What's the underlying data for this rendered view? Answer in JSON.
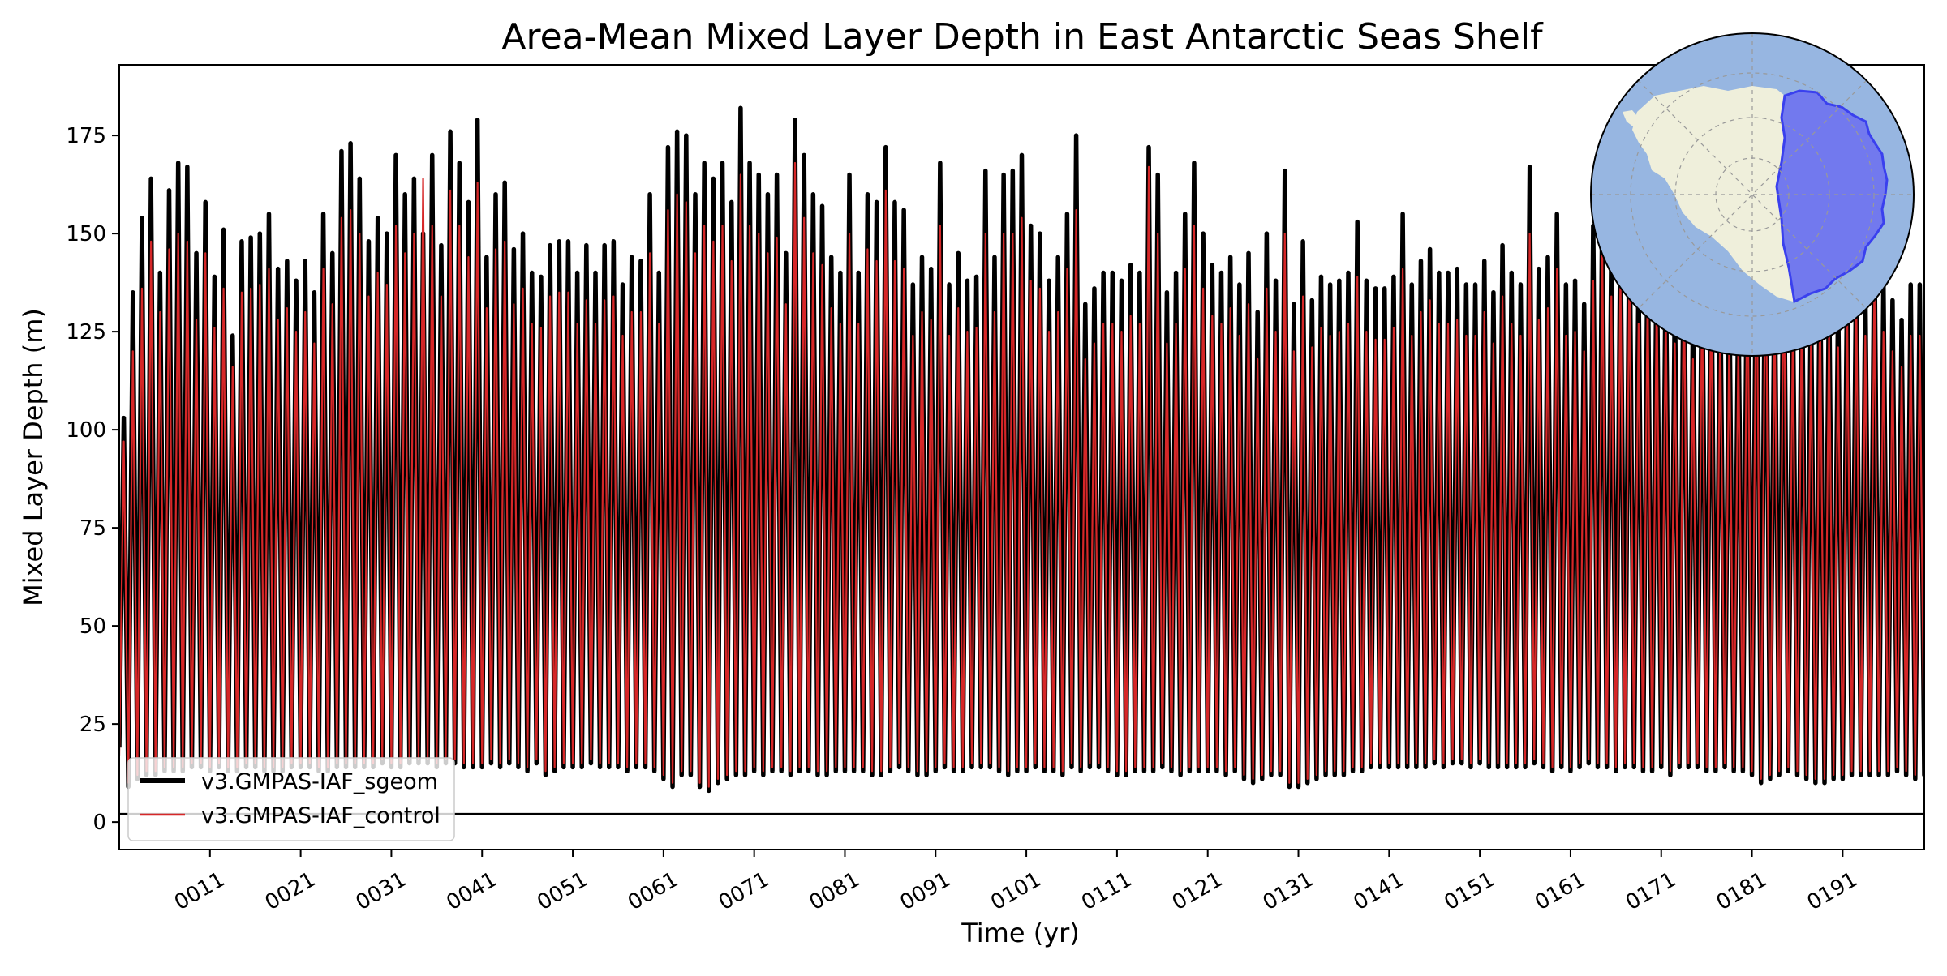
{
  "chart_data": {
    "type": "line",
    "title": "Area-Mean Mixed Layer Depth in East Antarctic Seas Shelf",
    "xlabel": "Time (yr)",
    "ylabel": "Mixed Layer Depth (m)",
    "xlim": [
      1,
      200
    ],
    "ylim": [
      -7,
      193
    ],
    "x_ticks": [
      11,
      21,
      31,
      41,
      51,
      61,
      71,
      81,
      91,
      101,
      111,
      121,
      131,
      141,
      151,
      161,
      171,
      181,
      191
    ],
    "x_tick_labels": [
      "0011",
      "0021",
      "0031",
      "0041",
      "0051",
      "0061",
      "0071",
      "0081",
      "0091",
      "0101",
      "0111",
      "0121",
      "0131",
      "0141",
      "0151",
      "0161",
      "0171",
      "0181",
      "0191"
    ],
    "y_ticks": [
      0,
      25,
      50,
      75,
      100,
      125,
      150,
      175
    ],
    "y_tick_labels": [
      "0",
      "25",
      "50",
      "75",
      "100",
      "125",
      "150",
      "175"
    ],
    "zero_line": true,
    "grid": false,
    "legend_position": "lower-left",
    "series": [
      {
        "name": "v3.GMPAS-IAF_sgeom",
        "color": "#000000",
        "note_sampling": "annual maximum and minimum of the seasonal cycle, years 1-200",
        "annual_max": [
          103,
          135,
          154,
          164,
          140,
          161,
          168,
          167,
          145,
          158,
          139,
          151,
          124,
          148,
          149,
          150,
          155,
          141,
          143,
          138,
          143,
          135,
          155,
          145,
          171,
          173,
          164,
          148,
          154,
          150,
          170,
          160,
          164,
          150,
          170,
          147,
          176,
          168,
          158,
          179,
          144,
          160,
          163,
          146,
          150,
          140,
          139,
          147,
          148,
          148,
          140,
          147,
          140,
          147,
          148,
          137,
          144,
          143,
          160,
          140,
          172,
          176,
          175,
          160,
          168,
          164,
          168,
          158,
          182,
          168,
          165,
          160,
          165,
          145,
          179,
          170,
          160,
          157,
          144,
          140,
          165,
          140,
          160,
          158,
          172,
          158,
          156,
          137,
          144,
          141,
          168,
          137,
          145,
          138,
          139,
          166,
          144,
          165,
          166,
          170,
          152,
          150,
          138,
          144,
          155,
          175,
          132,
          136,
          140,
          140,
          138,
          142,
          140,
          172,
          165,
          135,
          140,
          155,
          168,
          150,
          142,
          140,
          144,
          137,
          145,
          130,
          150,
          138,
          166,
          132,
          148,
          133,
          139,
          137,
          138,
          140,
          153,
          138,
          136,
          136,
          139,
          155,
          137,
          143,
          146,
          140,
          140,
          141,
          137,
          137,
          143,
          135,
          147,
          140,
          137,
          167,
          141,
          144,
          155,
          137,
          138,
          132,
          152,
          160,
          148,
          154,
          158,
          140,
          150,
          149,
          144,
          135,
          155,
          130,
          148,
          152,
          140,
          138,
          135,
          160,
          162,
          166,
          144,
          160,
          137,
          148,
          135,
          146,
          139,
          134,
          143,
          147,
          137,
          152,
          138,
          133,
          128,
          137,
          137,
          137
        ],
        "annual_min": [
          19,
          9,
          11,
          12,
          12,
          13,
          13,
          13,
          14,
          14,
          13,
          14,
          13,
          13,
          14,
          14,
          13,
          13,
          13,
          14,
          14,
          14,
          13,
          13,
          14,
          14,
          14,
          14,
          14,
          15,
          14,
          14,
          15,
          15,
          15,
          14,
          15,
          15,
          14,
          14,
          14,
          15,
          14,
          15,
          14,
          13,
          15,
          12,
          13,
          14,
          14,
          14,
          15,
          14,
          14,
          14,
          13,
          14,
          14,
          13,
          11,
          9,
          12,
          12,
          9,
          8,
          10,
          11,
          12,
          12,
          13,
          12,
          13,
          13,
          12,
          13,
          13,
          12,
          12,
          13,
          13,
          13,
          13,
          12,
          12,
          13,
          14,
          13,
          12,
          12,
          13,
          14,
          13,
          13,
          14,
          14,
          14,
          13,
          12,
          13,
          13,
          14,
          13,
          13,
          12,
          14,
          13,
          14,
          14,
          13,
          12,
          12,
          13,
          13,
          13,
          14,
          13,
          12,
          13,
          13,
          13,
          13,
          12,
          13,
          11,
          10,
          11,
          12,
          12,
          9,
          9,
          10,
          11,
          12,
          12,
          12,
          13,
          13,
          14,
          14,
          14,
          14,
          14,
          14,
          14,
          15,
          14,
          15,
          15,
          14,
          15,
          14,
          14,
          14,
          14,
          14,
          15,
          14,
          13,
          14,
          13,
          14,
          15,
          14,
          14,
          13,
          14,
          14,
          13,
          13,
          14,
          12,
          14,
          14,
          14,
          13,
          13,
          14,
          13,
          13,
          12,
          10,
          11,
          12,
          13,
          12,
          11,
          10,
          10,
          11,
          11,
          12,
          12,
          12,
          12,
          12,
          13,
          12,
          11,
          12
        ]
      },
      {
        "name": "v3.GMPAS-IAF_control",
        "color": "#d62728",
        "note_sampling": "annual maximum and minimum of the seasonal cycle, years 1-200",
        "annual_max": [
          97,
          120,
          136,
          148,
          130,
          146,
          150,
          148,
          128,
          145,
          126,
          136,
          116,
          135,
          136,
          137,
          141,
          128,
          131,
          125,
          130,
          122,
          141,
          132,
          154,
          156,
          150,
          134,
          140,
          137,
          152,
          145,
          150,
          164,
          152,
          134,
          161,
          152,
          144,
          163,
          131,
          146,
          148,
          132,
          136,
          127,
          126,
          134,
          135,
          135,
          127,
          133,
          127,
          133,
          134,
          124,
          130,
          130,
          145,
          127,
          156,
          160,
          158,
          145,
          152,
          148,
          152,
          143,
          165,
          152,
          150,
          145,
          149,
          132,
          168,
          154,
          145,
          142,
          131,
          127,
          150,
          127,
          146,
          143,
          161,
          143,
          141,
          124,
          130,
          128,
          152,
          124,
          131,
          125,
          126,
          150,
          130,
          150,
          150,
          154,
          138,
          136,
          125,
          130,
          141,
          156,
          118,
          122,
          127,
          127,
          125,
          129,
          127,
          167,
          150,
          122,
          127,
          141,
          152,
          136,
          129,
          127,
          131,
          124,
          132,
          118,
          136,
          125,
          150,
          120,
          134,
          121,
          126,
          124,
          125,
          127,
          139,
          125,
          123,
          123,
          126,
          141,
          124,
          130,
          133,
          127,
          127,
          128,
          124,
          124,
          130,
          122,
          134,
          127,
          124,
          150,
          128,
          131,
          141,
          124,
          125,
          120,
          138,
          145,
          134,
          140,
          143,
          127,
          136,
          135,
          131,
          122,
          141,
          118,
          134,
          138,
          127,
          125,
          122,
          145,
          148,
          151,
          130,
          145,
          124,
          134,
          122,
          133,
          126,
          121,
          130,
          134,
          124,
          138,
          125,
          120,
          116,
          124,
          124,
          124
        ],
        "annual_min": [
          17,
          10,
          12,
          13,
          13,
          14,
          14,
          14,
          15,
          15,
          14,
          15,
          14,
          14,
          15,
          15,
          14,
          14,
          14,
          15,
          15,
          15,
          14,
          14,
          15,
          15,
          15,
          15,
          15,
          16,
          15,
          15,
          16,
          16,
          16,
          15,
          16,
          16,
          15,
          15,
          15,
          16,
          15,
          16,
          15,
          14,
          16,
          13,
          14,
          15,
          15,
          15,
          16,
          15,
          15,
          15,
          14,
          15,
          15,
          14,
          12,
          10,
          13,
          13,
          10,
          9,
          11,
          12,
          13,
          13,
          14,
          13,
          14,
          14,
          13,
          14,
          14,
          13,
          13,
          14,
          14,
          14,
          14,
          13,
          13,
          14,
          15,
          14,
          13,
          13,
          14,
          15,
          14,
          14,
          15,
          15,
          15,
          14,
          13,
          14,
          14,
          15,
          14,
          14,
          13,
          15,
          14,
          15,
          15,
          14,
          13,
          13,
          14,
          14,
          14,
          15,
          14,
          13,
          14,
          14,
          14,
          14,
          13,
          14,
          12,
          11,
          12,
          13,
          13,
          10,
          10,
          11,
          12,
          13,
          13,
          13,
          14,
          14,
          15,
          15,
          15,
          15,
          15,
          15,
          15,
          16,
          15,
          16,
          16,
          15,
          16,
          15,
          15,
          15,
          15,
          15,
          16,
          15,
          14,
          15,
          14,
          15,
          16,
          15,
          15,
          14,
          15,
          15,
          14,
          14,
          15,
          13,
          15,
          15,
          15,
          14,
          14,
          15,
          14,
          14,
          13,
          11,
          12,
          13,
          14,
          13,
          12,
          11,
          11,
          12,
          12,
          13,
          13,
          13,
          13,
          13,
          14,
          13,
          12,
          13
        ]
      }
    ],
    "inset_map": {
      "description_icon": "south-polar-stereographic-map-icon",
      "ocean_color": "#97b6e1",
      "land_color": "#efefdb",
      "region_color": "#6b6ff0",
      "region_edge_color": "#3a40ee"
    }
  }
}
